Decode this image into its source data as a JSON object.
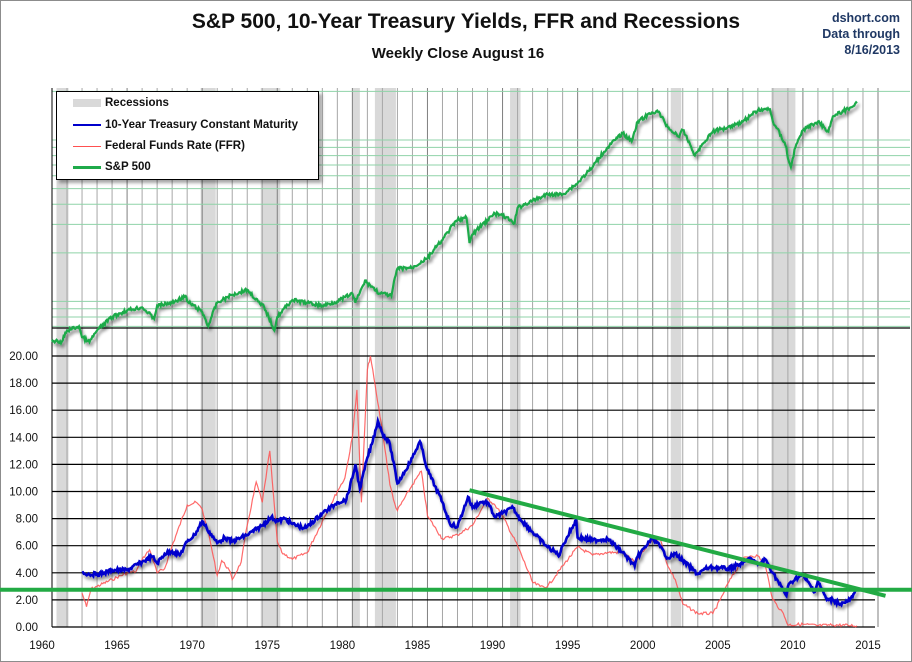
{
  "chart_data": {
    "type": "line",
    "title": "S&P 500, 10-Year Treasury Yields, FFR and Recessions",
    "subtitle": "Weekly Close August 16",
    "source": [
      "dshort.com",
      "Data through",
      "8/16/2013"
    ],
    "xlabel": "",
    "ylabel": "",
    "x_ticks": [
      "1960",
      "1965",
      "1970",
      "1975",
      "1980",
      "1985",
      "1990",
      "1995",
      "2000",
      "2005",
      "2010",
      "2015"
    ],
    "xlim": [
      1960,
      2015
    ],
    "y_ticks": [
      "0.00",
      "2.00",
      "4.00",
      "6.00",
      "8.00",
      "10.00",
      "12.00",
      "14.00",
      "16.00",
      "18.00",
      "20.00"
    ],
    "ylim": [
      0,
      20
    ],
    "grid": true,
    "legend_position": "top-left",
    "legend": [
      {
        "label": "Recessions",
        "kind": "band",
        "color": "#d9d9d9"
      },
      {
        "label": "10-Year Treasury Constant Maturity",
        "kind": "line",
        "color": "#0000cc"
      },
      {
        "label": "Federal Funds Rate (FFR)",
        "kind": "line",
        "color": "#ff5050"
      },
      {
        "label": "S&P 500",
        "kind": "line",
        "color": "#1faa4a"
      }
    ],
    "recessions": [
      [
        1960.3,
        1961.1
      ],
      [
        1969.9,
        1970.9
      ],
      [
        1973.9,
        1975.2
      ],
      [
        1980.0,
        1980.5
      ],
      [
        1981.5,
        1982.9
      ],
      [
        1990.5,
        1991.2
      ],
      [
        2001.2,
        2001.9
      ],
      [
        2007.9,
        2009.5
      ]
    ],
    "series": [
      {
        "name": "10-Year Treasury Constant Maturity",
        "color": "#0000cc",
        "x": [
          1962.0,
          1962.5,
          1963,
          1963.5,
          1964,
          1965,
          1966,
          1966.7,
          1967,
          1967.5,
          1968,
          1968.5,
          1969,
          1969.5,
          1970,
          1970.3,
          1970.8,
          1971,
          1971.5,
          1972,
          1973,
          1973.6,
          1974,
          1974.6,
          1975,
          1975.5,
          1976,
          1976.8,
          1977,
          1978,
          1978.8,
          1979,
          1979.6,
          1980,
          1980.2,
          1980.5,
          1981,
          1981.3,
          1981.7,
          1982,
          1982.5,
          1983,
          1983.5,
          1984,
          1984.5,
          1985,
          1985.5,
          1986,
          1986.5,
          1987,
          1987.7,
          1988,
          1988.5,
          1989,
          1989.5,
          1990,
          1990.7,
          1991,
          1992,
          1993,
          1993.8,
          1994,
          1994.9,
          1995,
          1996,
          1997,
          1998,
          1998.8,
          1999,
          2000,
          2000.5,
          2001,
          2001.5,
          2002,
          2003,
          2003.5,
          2004,
          2005,
          2006,
          2006.5,
          2007,
          2007.5,
          2008,
          2008.9,
          2009,
          2009.5,
          2010,
          2010.8,
          2011,
          2011.6,
          2012,
          2012.5,
          2013,
          2013.3,
          2013.6
        ],
        "values": [
          4.0,
          3.9,
          3.9,
          4.0,
          4.2,
          4.2,
          4.8,
          5.2,
          4.7,
          5.4,
          5.6,
          5.3,
          6.3,
          6.8,
          7.8,
          7.3,
          6.5,
          6.2,
          6.6,
          6.3,
          6.8,
          7.2,
          7.5,
          8.1,
          7.8,
          8.0,
          7.6,
          7.3,
          7.4,
          8.4,
          9.0,
          9.2,
          9.4,
          11.0,
          12.0,
          10.2,
          12.5,
          13.5,
          15.2,
          14.3,
          13.5,
          10.6,
          11.5,
          12.5,
          13.7,
          11.6,
          10.4,
          9.2,
          7.6,
          7.4,
          9.6,
          8.8,
          9.2,
          9.2,
          8.1,
          8.4,
          8.8,
          8.2,
          7.0,
          5.9,
          5.3,
          6.0,
          7.9,
          6.6,
          6.4,
          6.5,
          5.5,
          4.5,
          5.2,
          6.6,
          5.9,
          5.1,
          5.4,
          4.9,
          3.9,
          4.3,
          4.4,
          4.3,
          4.7,
          5.1,
          4.6,
          5.0,
          4.0,
          2.3,
          3.0,
          3.6,
          3.8,
          2.6,
          3.4,
          2.0,
          2.0,
          1.7,
          1.9,
          2.2,
          2.8
        ]
      },
      {
        "name": "Federal Funds Rate (FFR)",
        "color": "#ff5050",
        "x": [
          1962.0,
          1962.3,
          1962.6,
          1963,
          1964,
          1965,
          1965.6,
          1966,
          1966.5,
          1967,
          1967.5,
          1968,
          1969,
          1969.6,
          1970,
          1970.5,
          1971,
          1971.3,
          1971.8,
          1972,
          1972.6,
          1973,
          1973.6,
          1974,
          1974.5,
          1975,
          1975.3,
          1976,
          1977,
          1978,
          1979,
          1979.5,
          1980,
          1980.3,
          1980.6,
          1981,
          1981.2,
          1981.6,
          1982,
          1982.5,
          1982.9,
          1983,
          1984,
          1984.6,
          1985,
          1986,
          1987,
          1988,
          1989,
          1989.5,
          1990,
          1991,
          1992,
          1992.5,
          1993,
          1994,
          1995,
          1996,
          1997,
          1998,
          1998.8,
          1999,
          2000,
          2000.5,
          2001,
          2001.5,
          2002,
          2003,
          2004,
          2004.5,
          2005,
          2006,
          2006.5,
          2007,
          2007.5,
          2008,
          2008.7,
          2009,
          2010,
          2011,
          2012,
          2013,
          2013.6
        ],
        "values": [
          2.5,
          1.5,
          2.8,
          3.0,
          3.5,
          4.0,
          4.1,
          5.0,
          5.7,
          4.0,
          4.3,
          6.0,
          9.0,
          9.2,
          8.7,
          6.5,
          3.8,
          4.9,
          4.2,
          3.5,
          4.8,
          7.5,
          10.7,
          9.2,
          13.0,
          6.3,
          5.5,
          5.0,
          5.5,
          7.8,
          10.0,
          11.0,
          14.0,
          17.5,
          9.2,
          19.0,
          20.0,
          17.2,
          14.5,
          10.5,
          8.8,
          8.6,
          10.5,
          11.5,
          8.2,
          6.5,
          6.8,
          7.5,
          9.5,
          9.0,
          8.2,
          6.0,
          3.3,
          3.0,
          3.0,
          4.5,
          5.9,
          5.3,
          5.5,
          5.5,
          4.8,
          5.0,
          6.5,
          6.5,
          4.5,
          3.5,
          1.7,
          1.0,
          1.0,
          2.0,
          3.2,
          5.0,
          5.25,
          5.25,
          4.5,
          2.0,
          1.0,
          0.15,
          0.2,
          0.1,
          0.15,
          0.12,
          0.09
        ]
      },
      {
        "name": "S&P 500",
        "color": "#1faa4a",
        "scale": "log",
        "x": [
          1960,
          1960.6,
          1961,
          1961.8,
          1962,
          1962.5,
          1963,
          1964,
          1965,
          1966,
          1966.8,
          1967,
          1968,
          1968.9,
          1969,
          1970,
          1970.4,
          1971,
          1972,
          1973,
          1973.9,
          1974,
          1974.8,
          1975,
          1976,
          1977,
          1978,
          1979,
          1980,
          1980.2,
          1980.9,
          1981,
          1981.8,
          1982,
          1982.6,
          1983,
          1984,
          1985,
          1986,
          1987,
          1987.6,
          1987.8,
          1988,
          1989,
          1989.5,
          1990,
          1990.8,
          1991,
          1992,
          1993,
          1994,
          1995,
          1996,
          1997,
          1998,
          1998.6,
          1999,
          2000,
          2000.3,
          2001,
          2001.7,
          2002,
          2002.8,
          2003,
          2004,
          2005,
          2006,
          2007,
          2007.8,
          2008,
          2008.9,
          2009,
          2009.2,
          2009.5,
          2010,
          2011,
          2011.7,
          2012,
          2013,
          2013.6
        ],
        "values": [
          58,
          55,
          66,
          70,
          60,
          56,
          66,
          80,
          88,
          92,
          78,
          94,
          98,
          108,
          100,
          86,
          70,
          98,
          110,
          118,
          95,
          96,
          66,
          80,
          102,
          98,
          94,
          100,
          112,
          98,
          135,
          130,
          112,
          112,
          108,
          160,
          162,
          185,
          240,
          320,
          330,
          230,
          260,
          320,
          350,
          340,
          305,
          380,
          420,
          460,
          460,
          540,
          680,
          900,
          1100,
          980,
          1300,
          1480,
          1520,
          1200,
          1050,
          1150,
          800,
          850,
          1130,
          1200,
          1300,
          1530,
          1550,
          1300,
          900,
          770,
          680,
          900,
          1150,
          1300,
          1130,
          1400,
          1560,
          1690
        ]
      }
    ],
    "trendlines": [
      {
        "name": "10Y resistance trendline",
        "color": "#22aa44",
        "from": [
          1987.8,
          10.1
        ],
        "to": [
          2015.5,
          2.3
        ]
      },
      {
        "name": "10Y support level",
        "color": "#22aa44",
        "from": [
          1960,
          2.75
        ],
        "to": [
          2015,
          2.75
        ]
      }
    ]
  }
}
